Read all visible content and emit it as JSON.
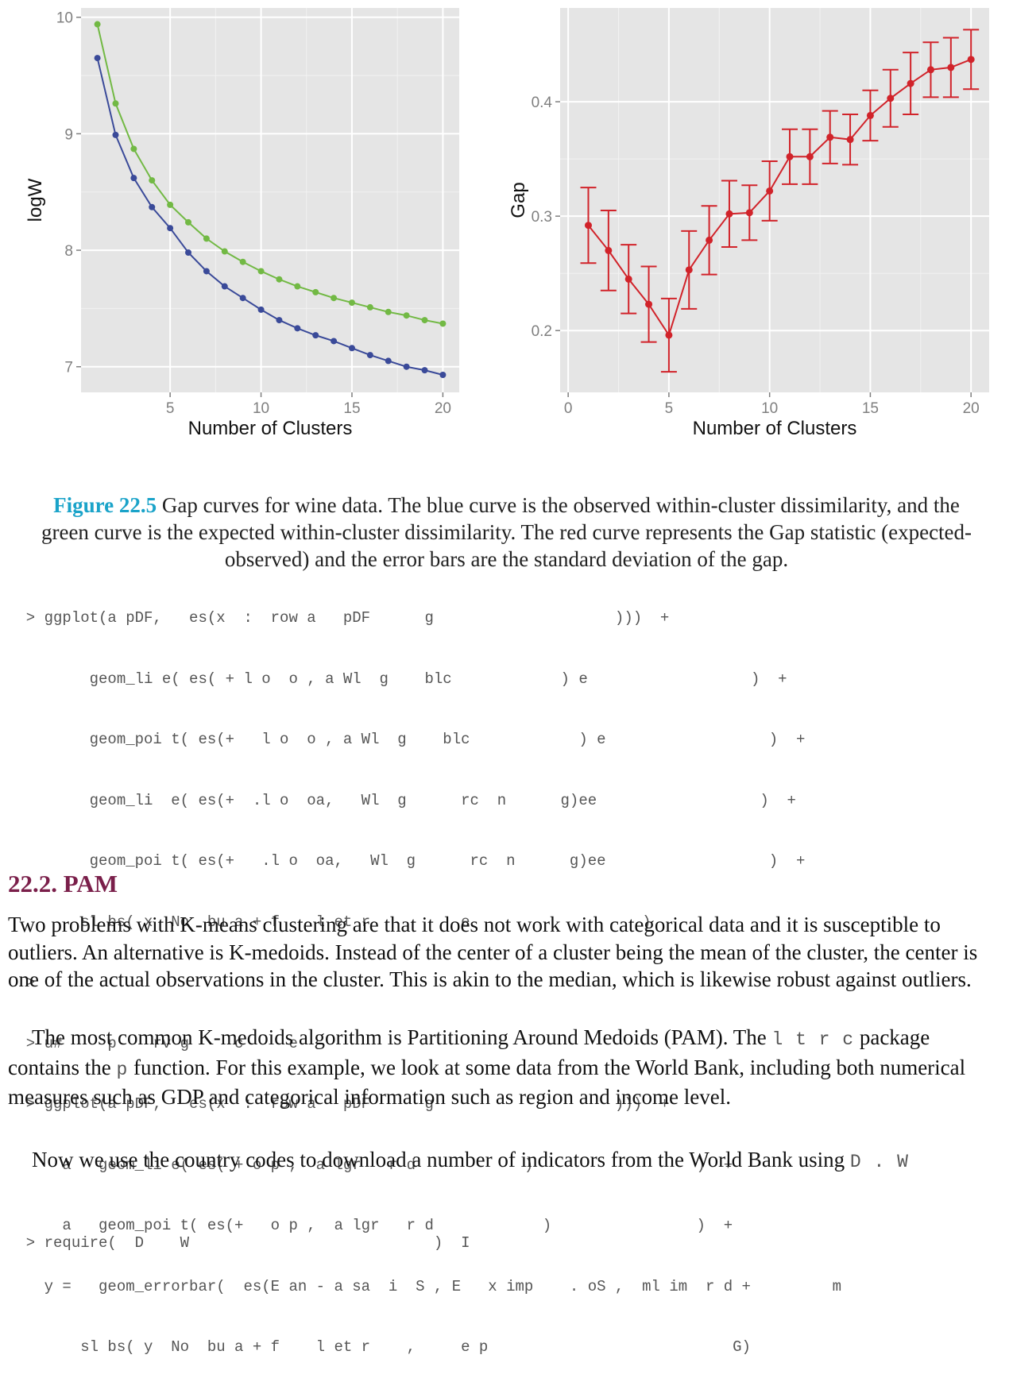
{
  "chart_data": [
    {
      "type": "line",
      "xlabel": "Number of Clusters",
      "ylabel": "logW",
      "xlim": [
        0.1,
        20.9
      ],
      "ylim": [
        6.78,
        10.08
      ],
      "xticks": [
        "5",
        "10",
        "15",
        "20"
      ],
      "yticks": [
        "7",
        "8",
        "9",
        "10"
      ],
      "grid": true,
      "colors": {
        "panel_bg": "#e5e5e5",
        "grid": "#ffffff",
        "observed": "#3a4a99",
        "expected": "#72b944"
      },
      "x": [
        1,
        2,
        3,
        4,
        5,
        6,
        7,
        8,
        9,
        10,
        11,
        12,
        13,
        14,
        15,
        16,
        17,
        18,
        19,
        20
      ],
      "series": [
        {
          "values": [
            9.65,
            8.99,
            8.62,
            8.37,
            8.19,
            7.98,
            7.82,
            7.69,
            7.59,
            7.49,
            7.4,
            7.33,
            7.27,
            7.22,
            7.16,
            7.1,
            7.05,
            7.0,
            6.97,
            6.93
          ]
        },
        {
          "values": [
            9.94,
            9.26,
            8.87,
            8.6,
            8.39,
            8.24,
            8.1,
            7.99,
            7.9,
            7.82,
            7.75,
            7.69,
            7.64,
            7.59,
            7.55,
            7.51,
            7.47,
            7.44,
            7.4,
            7.37
          ]
        }
      ]
    },
    {
      "type": "line",
      "xlabel": "Number of Clusters",
      "ylabel": "Gap",
      "xlim": [
        -0.4,
        20.9
      ],
      "ylim": [
        0.146,
        0.482
      ],
      "xticks": [
        "0",
        "5",
        "10",
        "15",
        "20"
      ],
      "yticks": [
        "0.2",
        "0.3",
        "0.4"
      ],
      "grid": true,
      "colors": {
        "panel_bg": "#e5e5e5",
        "grid": "#ffffff",
        "gap": "#d1232a"
      },
      "x": [
        1,
        2,
        3,
        4,
        5,
        6,
        7,
        8,
        9,
        10,
        11,
        12,
        13,
        14,
        15,
        16,
        17,
        18,
        19,
        20
      ],
      "series": [
        {
          "values": [
            0.292,
            0.27,
            0.245,
            0.223,
            0.196,
            0.253,
            0.279,
            0.302,
            0.303,
            0.322,
            0.352,
            0.352,
            0.369,
            0.367,
            0.388,
            0.403,
            0.416,
            0.428,
            0.43,
            0.437
          ],
          "error": [
            0.033,
            0.035,
            0.03,
            0.033,
            0.032,
            0.034,
            0.03,
            0.029,
            0.024,
            0.026,
            0.024,
            0.024,
            0.023,
            0.022,
            0.022,
            0.025,
            0.027,
            0.024,
            0.026,
            0.026
          ]
        }
      ]
    }
  ],
  "caption": {
    "label": "Figure 22.5",
    "text": " Gap curves for wine data. The blue curve is the observed within-cluster dissimilarity, and the green curve is the expected within-cluster dissimilarity. The red curve represents the Gap statistic (expected-observed) and the error bars are the standard deviation of the gap."
  },
  "code_block_1": [
    "  > ggplot(a pDF,   es(x  :  row a   pDF      g                    )))  +",
    "         geom_li e( es( + l o  o , a Wl  g    blc            ) e                  )  +",
    "         geom_poi t( es(+   l o  o , a Wl  g    blc            ) e                  )  +",
    "         geom_li  e( es(+  .l o  oa,   Wl  g      rc  n      g)ee                  )  +",
    "         geom_poi t( es(+   .l o  oa,   Wl  g      rc  n      g)ee                  )  +",
    "        sl bs( x  No  bu a + f    l et r          e                   )",
    "  >",
    "  > u#     p    rv g     c     e",
    "  > ggplot(a pDF,   es(x  :  row a   pDF      g                    )))  +",
    "      a   geom_li e( es( + o p ,  a lgr   r d            )                  )  +",
    "      a   geom_poi t( es(+   o p ,  a lgr   r d            )                )  +",
    "    y =   geom_errorbar(  es(E an - a sa  i  S , E   x imp    . oS ,  ml im  r d +         m",
    "        sl bs( y  No  bu a + f    l et r    ,     e p                           G)"
  ],
  "section": {
    "heading": "22.2. PAM"
  },
  "paragraphs": {
    "p1": "Two problems with K-means clustering are that it does not work with categorical data and it is susceptible to outliers. An alternative is K-medoids. Instead of the center of a cluster being the mean of the cluster, the center is one of the actual observations in the cluster. This is akin to the median, which is likewise robust against outliers.",
    "p2_a": "The most common K-medoids algorithm is Partitioning Around Medoids (PAM). The ",
    "p2_code1": "l   t r   c",
    "p2_b": " package contains the ",
    "p2_code2": "p",
    "p2_c": " function. For this example, we look at some data from the World Bank, including both numerical measures such as GDP and categorical information such as region and income level.",
    "p3_a": "Now we use the country codes to download a number of indicators from the World Bank using ",
    "p3_code": "D  .  W"
  },
  "code_block_2": [
    "  > require(  D    W                           )  I"
  ]
}
